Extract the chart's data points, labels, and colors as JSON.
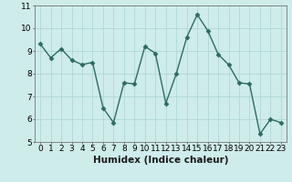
{
  "x": [
    0,
    1,
    2,
    3,
    4,
    5,
    6,
    7,
    8,
    9,
    10,
    11,
    12,
    13,
    14,
    15,
    16,
    17,
    18,
    19,
    20,
    21,
    22,
    23
  ],
  "y": [
    9.3,
    8.7,
    9.1,
    8.6,
    8.4,
    8.5,
    6.5,
    5.85,
    7.6,
    7.55,
    9.2,
    8.9,
    6.7,
    8.0,
    9.6,
    10.6,
    9.9,
    8.85,
    8.4,
    7.6,
    7.55,
    5.35,
    6.0,
    5.85
  ],
  "xlabel": "Humidex (Indice chaleur)",
  "ylim": [
    5,
    11
  ],
  "xlim_min": -0.5,
  "xlim_max": 23.5,
  "yticks": [
    5,
    6,
    7,
    8,
    9,
    10,
    11
  ],
  "xticks": [
    0,
    1,
    2,
    3,
    4,
    5,
    6,
    7,
    8,
    9,
    10,
    11,
    12,
    13,
    14,
    15,
    16,
    17,
    18,
    19,
    20,
    21,
    22,
    23
  ],
  "line_color": "#2d6b5e",
  "marker": "D",
  "marker_size": 2.5,
  "bg_color": "#ceecea",
  "grid_color": "#aed8d4",
  "xlabel_fontsize": 7.5,
  "tick_fontsize": 6.5,
  "linewidth": 1.0
}
